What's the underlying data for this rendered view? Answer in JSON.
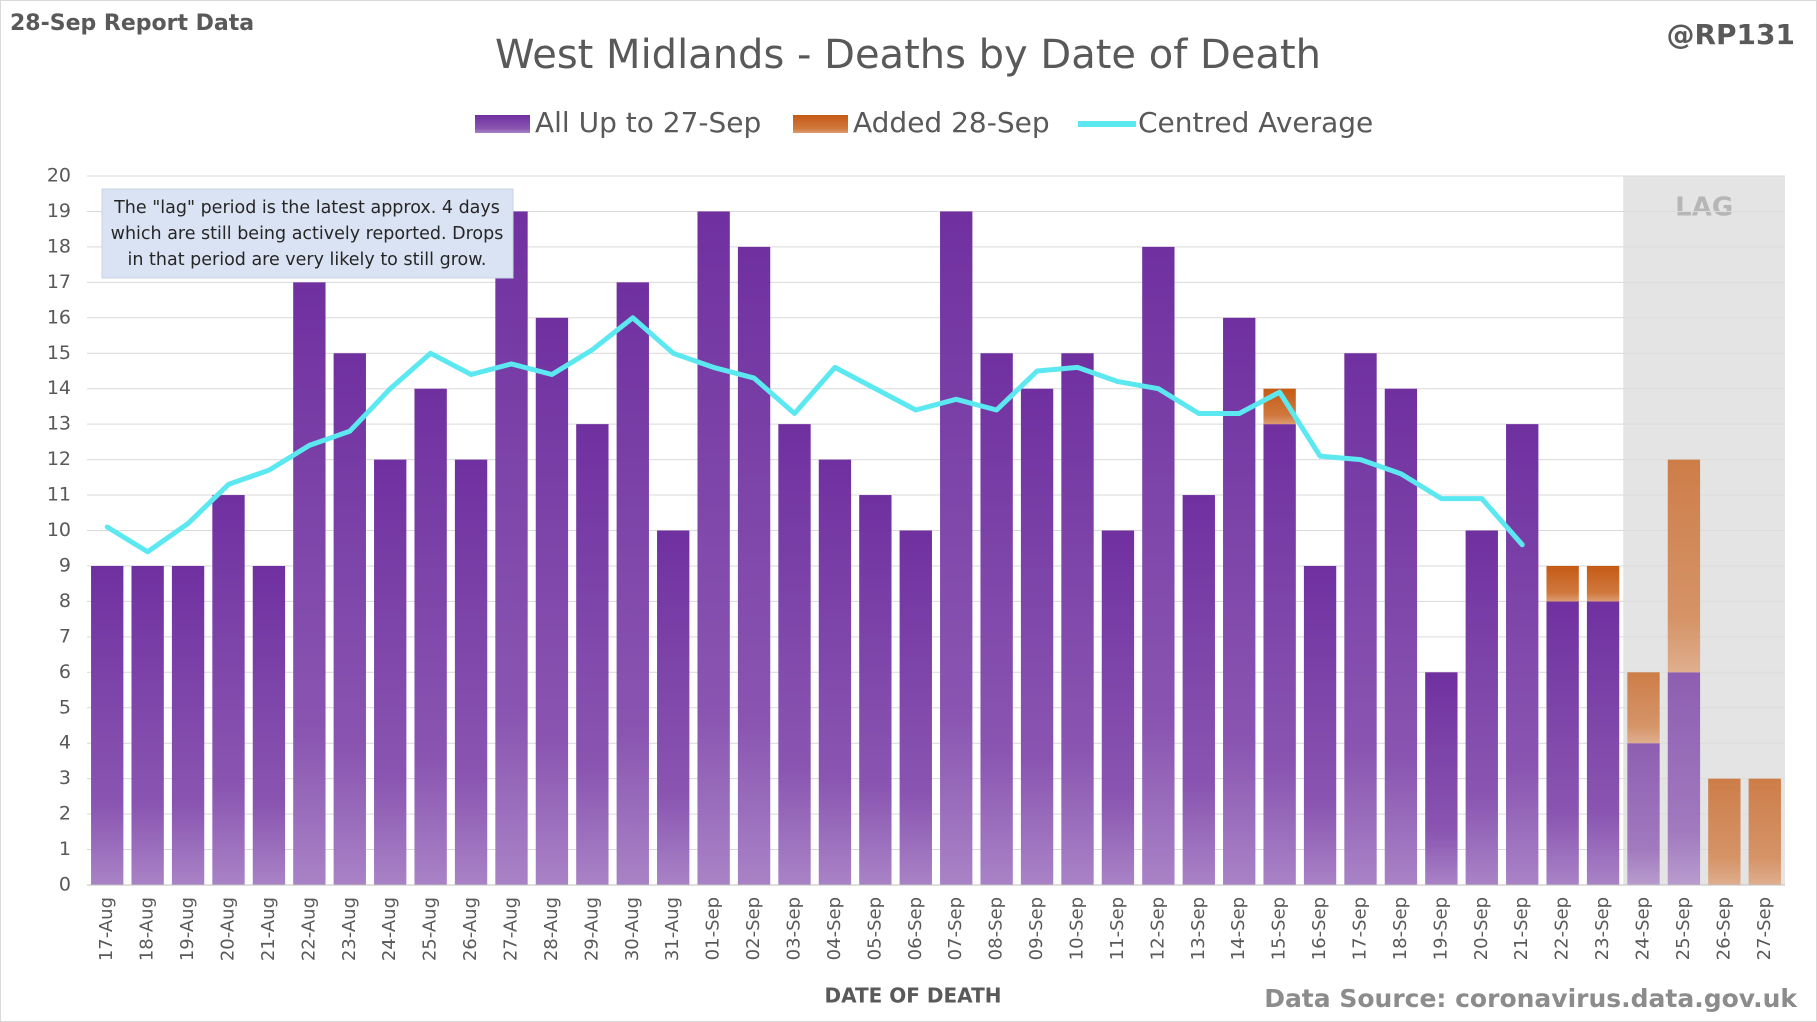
{
  "header": "28-Sep Report Data",
  "handle": "@RP131",
  "source": "Data Source: coronavirus.data.gov.uk",
  "chart_data": {
    "type": "bar",
    "stacked": true,
    "title": "West Midlands - Deaths by Date of Death",
    "x_label": "DATE OF DEATH",
    "annotation": [
      "The \"lag\" period is the latest approx. 4 days",
      "which are still being actively reported.  Drops",
      "in that period are very likely to still grow."
    ],
    "lag_label": "LAG",
    "lag_start": "24-Sep",
    "categories": [
      "17-Aug",
      "18-Aug",
      "19-Aug",
      "20-Aug",
      "21-Aug",
      "22-Aug",
      "23-Aug",
      "24-Aug",
      "25-Aug",
      "26-Aug",
      "27-Aug",
      "28-Aug",
      "29-Aug",
      "30-Aug",
      "31-Aug",
      "01-Sep",
      "02-Sep",
      "03-Sep",
      "04-Sep",
      "05-Sep",
      "06-Sep",
      "07-Sep",
      "08-Sep",
      "09-Sep",
      "10-Sep",
      "11-Sep",
      "12-Sep",
      "13-Sep",
      "14-Sep",
      "15-Sep",
      "16-Sep",
      "17-Sep",
      "18-Sep",
      "19-Sep",
      "20-Sep",
      "21-Sep",
      "22-Sep",
      "23-Sep",
      "24-Sep",
      "25-Sep",
      "26-Sep",
      "27-Sep"
    ],
    "series": [
      {
        "name": "All Up to 27-Sep",
        "color": "#7030a0",
        "type": "bar",
        "values": [
          9,
          9,
          9,
          11,
          9,
          17,
          15,
          12,
          14,
          12,
          19,
          16,
          13,
          17,
          10,
          19,
          18,
          13,
          12,
          11,
          10,
          19,
          15,
          14,
          15,
          10,
          18,
          11,
          16,
          13,
          9,
          15,
          14,
          6,
          10,
          13,
          8,
          8,
          4,
          6,
          0,
          0
        ]
      },
      {
        "name": "Added 28-Sep",
        "color": "#c55a11",
        "type": "bar",
        "values": [
          0,
          0,
          0,
          0,
          0,
          0,
          0,
          0,
          0,
          0,
          0,
          0,
          0,
          0,
          0,
          0,
          0,
          0,
          0,
          0,
          0,
          0,
          0,
          0,
          0,
          0,
          0,
          0,
          0,
          1,
          0,
          0,
          0,
          0,
          0,
          0,
          1,
          1,
          2,
          6,
          3,
          3
        ]
      },
      {
        "name": "Centred Average",
        "color": "#5ce8f0",
        "type": "line",
        "values": [
          10.1,
          9.4,
          10.2,
          11.3,
          11.7,
          12.4,
          12.8,
          14.0,
          15.0,
          14.4,
          14.7,
          14.4,
          15.1,
          16.0,
          15.0,
          14.6,
          14.3,
          13.3,
          14.6,
          14.0,
          13.4,
          13.7,
          13.4,
          14.5,
          14.6,
          14.2,
          14.0,
          13.3,
          13.3,
          13.9,
          12.1,
          12.0,
          11.6,
          10.9,
          10.9,
          9.6,
          null,
          null,
          null,
          null,
          null,
          null
        ]
      }
    ],
    "ylim": [
      0,
      20
    ],
    "yticks": [
      0,
      1,
      2,
      3,
      4,
      5,
      6,
      7,
      8,
      9,
      10,
      11,
      12,
      13,
      14,
      15,
      16,
      17,
      18,
      19,
      20
    ],
    "grid": true
  }
}
